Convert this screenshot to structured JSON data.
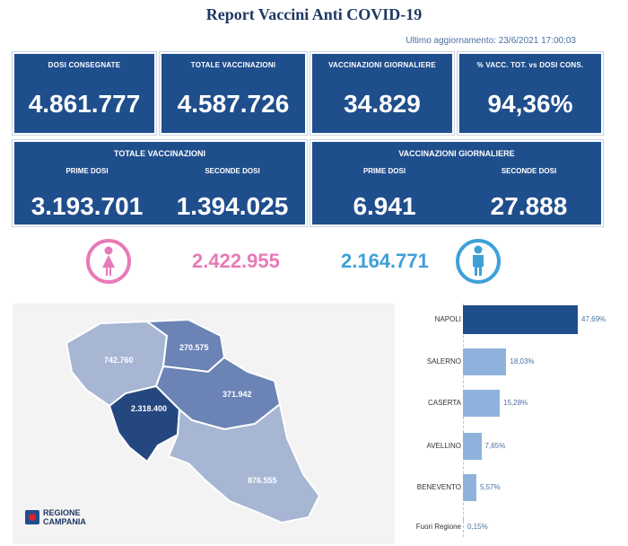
{
  "report": {
    "title": "Report Vaccini Anti COVID-19",
    "updated": "Ultimo aggiornamento: 23/6/2021 17:00:03"
  },
  "cards": [
    {
      "label": "DOSI CONSEGNATE",
      "value": "4.861.777"
    },
    {
      "label": "TOTALE VACCINAZIONI",
      "value": "4.587.726"
    },
    {
      "label": "VACCINAZIONI GIORNALIERE",
      "value": "34.829"
    },
    {
      "label": "% VACC. TOT. vs DOSI CONS.",
      "value": "94,36%"
    }
  ],
  "totale": {
    "heading": "TOTALE VACCINAZIONI",
    "prime_label": "PRIME DOSI",
    "prime_value": "3.193.701",
    "seconde_label": "SECONDE DOSI",
    "seconde_value": "1.394.025"
  },
  "giornaliere": {
    "heading": "VACCINAZIONI GIORNALIERE",
    "prime_label": "PRIME DOSI",
    "prime_value": "6.941",
    "seconde_label": "SECONDE DOSI",
    "seconde_value": "27.888"
  },
  "gender": {
    "female_value": "2.422.955",
    "male_value": "2.164.771",
    "female_color": "#e87ab8",
    "male_color": "#3fa0d8",
    "female_icon": "female-icon",
    "male_icon": "male-icon"
  },
  "map": {
    "labels": {
      "caserta": "742.760",
      "benevento": "270.575",
      "avellino": "371.942",
      "napoli": "2.318.400",
      "salerno": "876.555"
    },
    "logo_line1": "REGIONE",
    "logo_line2": "CAMPANIA"
  },
  "colors": {
    "primary": "#1f4e8c",
    "bar_dark": "#1f4e8c",
    "bar_light": "#8fb2dd"
  },
  "chart_data": {
    "type": "bar",
    "orientation": "horizontal",
    "categories": [
      "NAPOLI",
      "SALERNO",
      "CASERTA",
      "AVELLINO",
      "BENEVENTO",
      "Fuori Regione"
    ],
    "values": [
      47.69,
      18.03,
      15.28,
      7.65,
      5.57,
      0.15
    ],
    "value_labels": [
      "47,69%",
      "18,03%",
      "15,28%",
      "7,65%",
      "5,57%",
      "0,15%"
    ]
  }
}
